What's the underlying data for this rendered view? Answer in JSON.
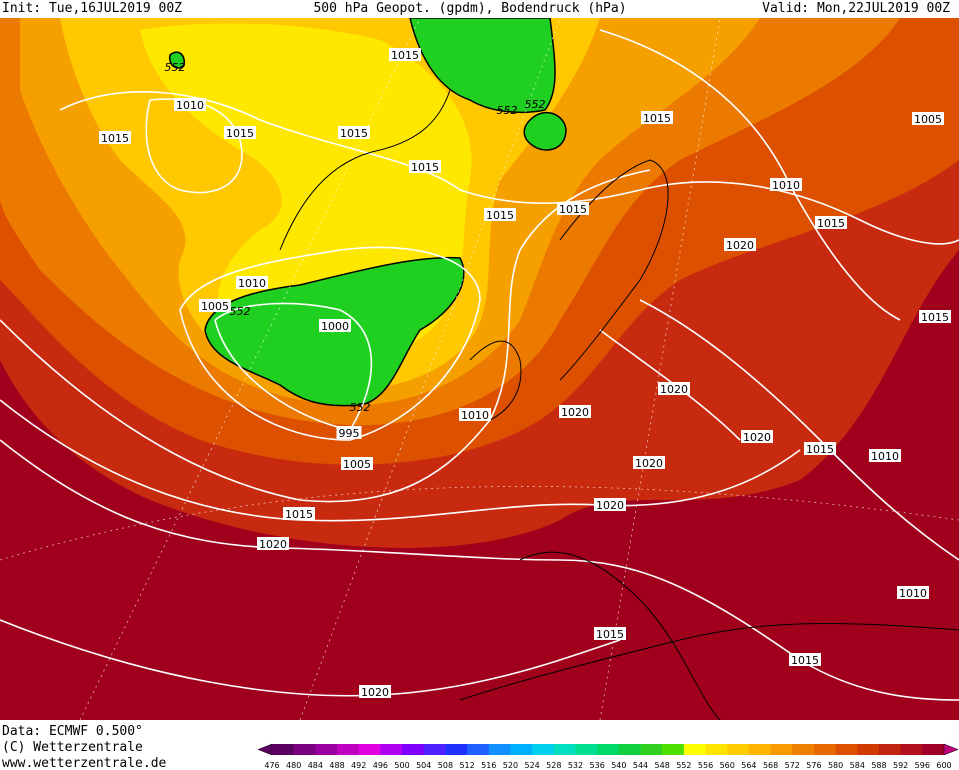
{
  "header": {
    "init": "Init: Tue,16JUL2019 00Z",
    "title": "500 hPa Geopot. (gpdm), Bodendruck (hPa)",
    "valid": "Valid: Mon,22JUL2019 00Z"
  },
  "map": {
    "isobar_labels": [
      "552",
      "1010",
      "1015",
      "1015",
      "1015",
      "1015",
      "1015",
      "552",
      "552",
      "1015",
      "1005",
      "1010",
      "1015",
      "1015",
      "1015",
      "1020",
      "1010",
      "1005",
      "552",
      "1000",
      "1015",
      "552",
      "995",
      "1010",
      "1020",
      "1020",
      "1020",
      "1015",
      "1010",
      "1020",
      "1005",
      "1015",
      "1020",
      "1020",
      "1010",
      "1015",
      "1015",
      "1020"
    ]
  },
  "footer": {
    "data": "Data: ECMWF  0.500°",
    "copyright": "(C) Wetterzentrale",
    "url": "www.wetterzentrale.de"
  },
  "colorbar": {
    "labels": [
      476,
      480,
      484,
      488,
      492,
      496,
      500,
      504,
      508,
      512,
      516,
      520,
      524,
      528,
      532,
      536,
      540,
      544,
      548,
      552,
      556,
      560,
      564,
      568,
      572,
      576,
      580,
      584,
      588,
      592,
      596,
      600
    ],
    "colors": [
      "#5a0060",
      "#7a0080",
      "#9a00a0",
      "#c000c0",
      "#e000e0",
      "#b000f0",
      "#8000ff",
      "#5020ff",
      "#2030ff",
      "#2060ff",
      "#1090ff",
      "#00b0ff",
      "#00d0f0",
      "#00e0c0",
      "#00e090",
      "#00d868",
      "#10d040",
      "#30d020",
      "#50e000",
      "#ffff00",
      "#ffe400",
      "#ffcc00",
      "#ffb400",
      "#f89a00",
      "#f08000",
      "#e86800",
      "#dc5000",
      "#d03a00",
      "#c02410",
      "#b01020",
      "#a00028"
    ]
  }
}
